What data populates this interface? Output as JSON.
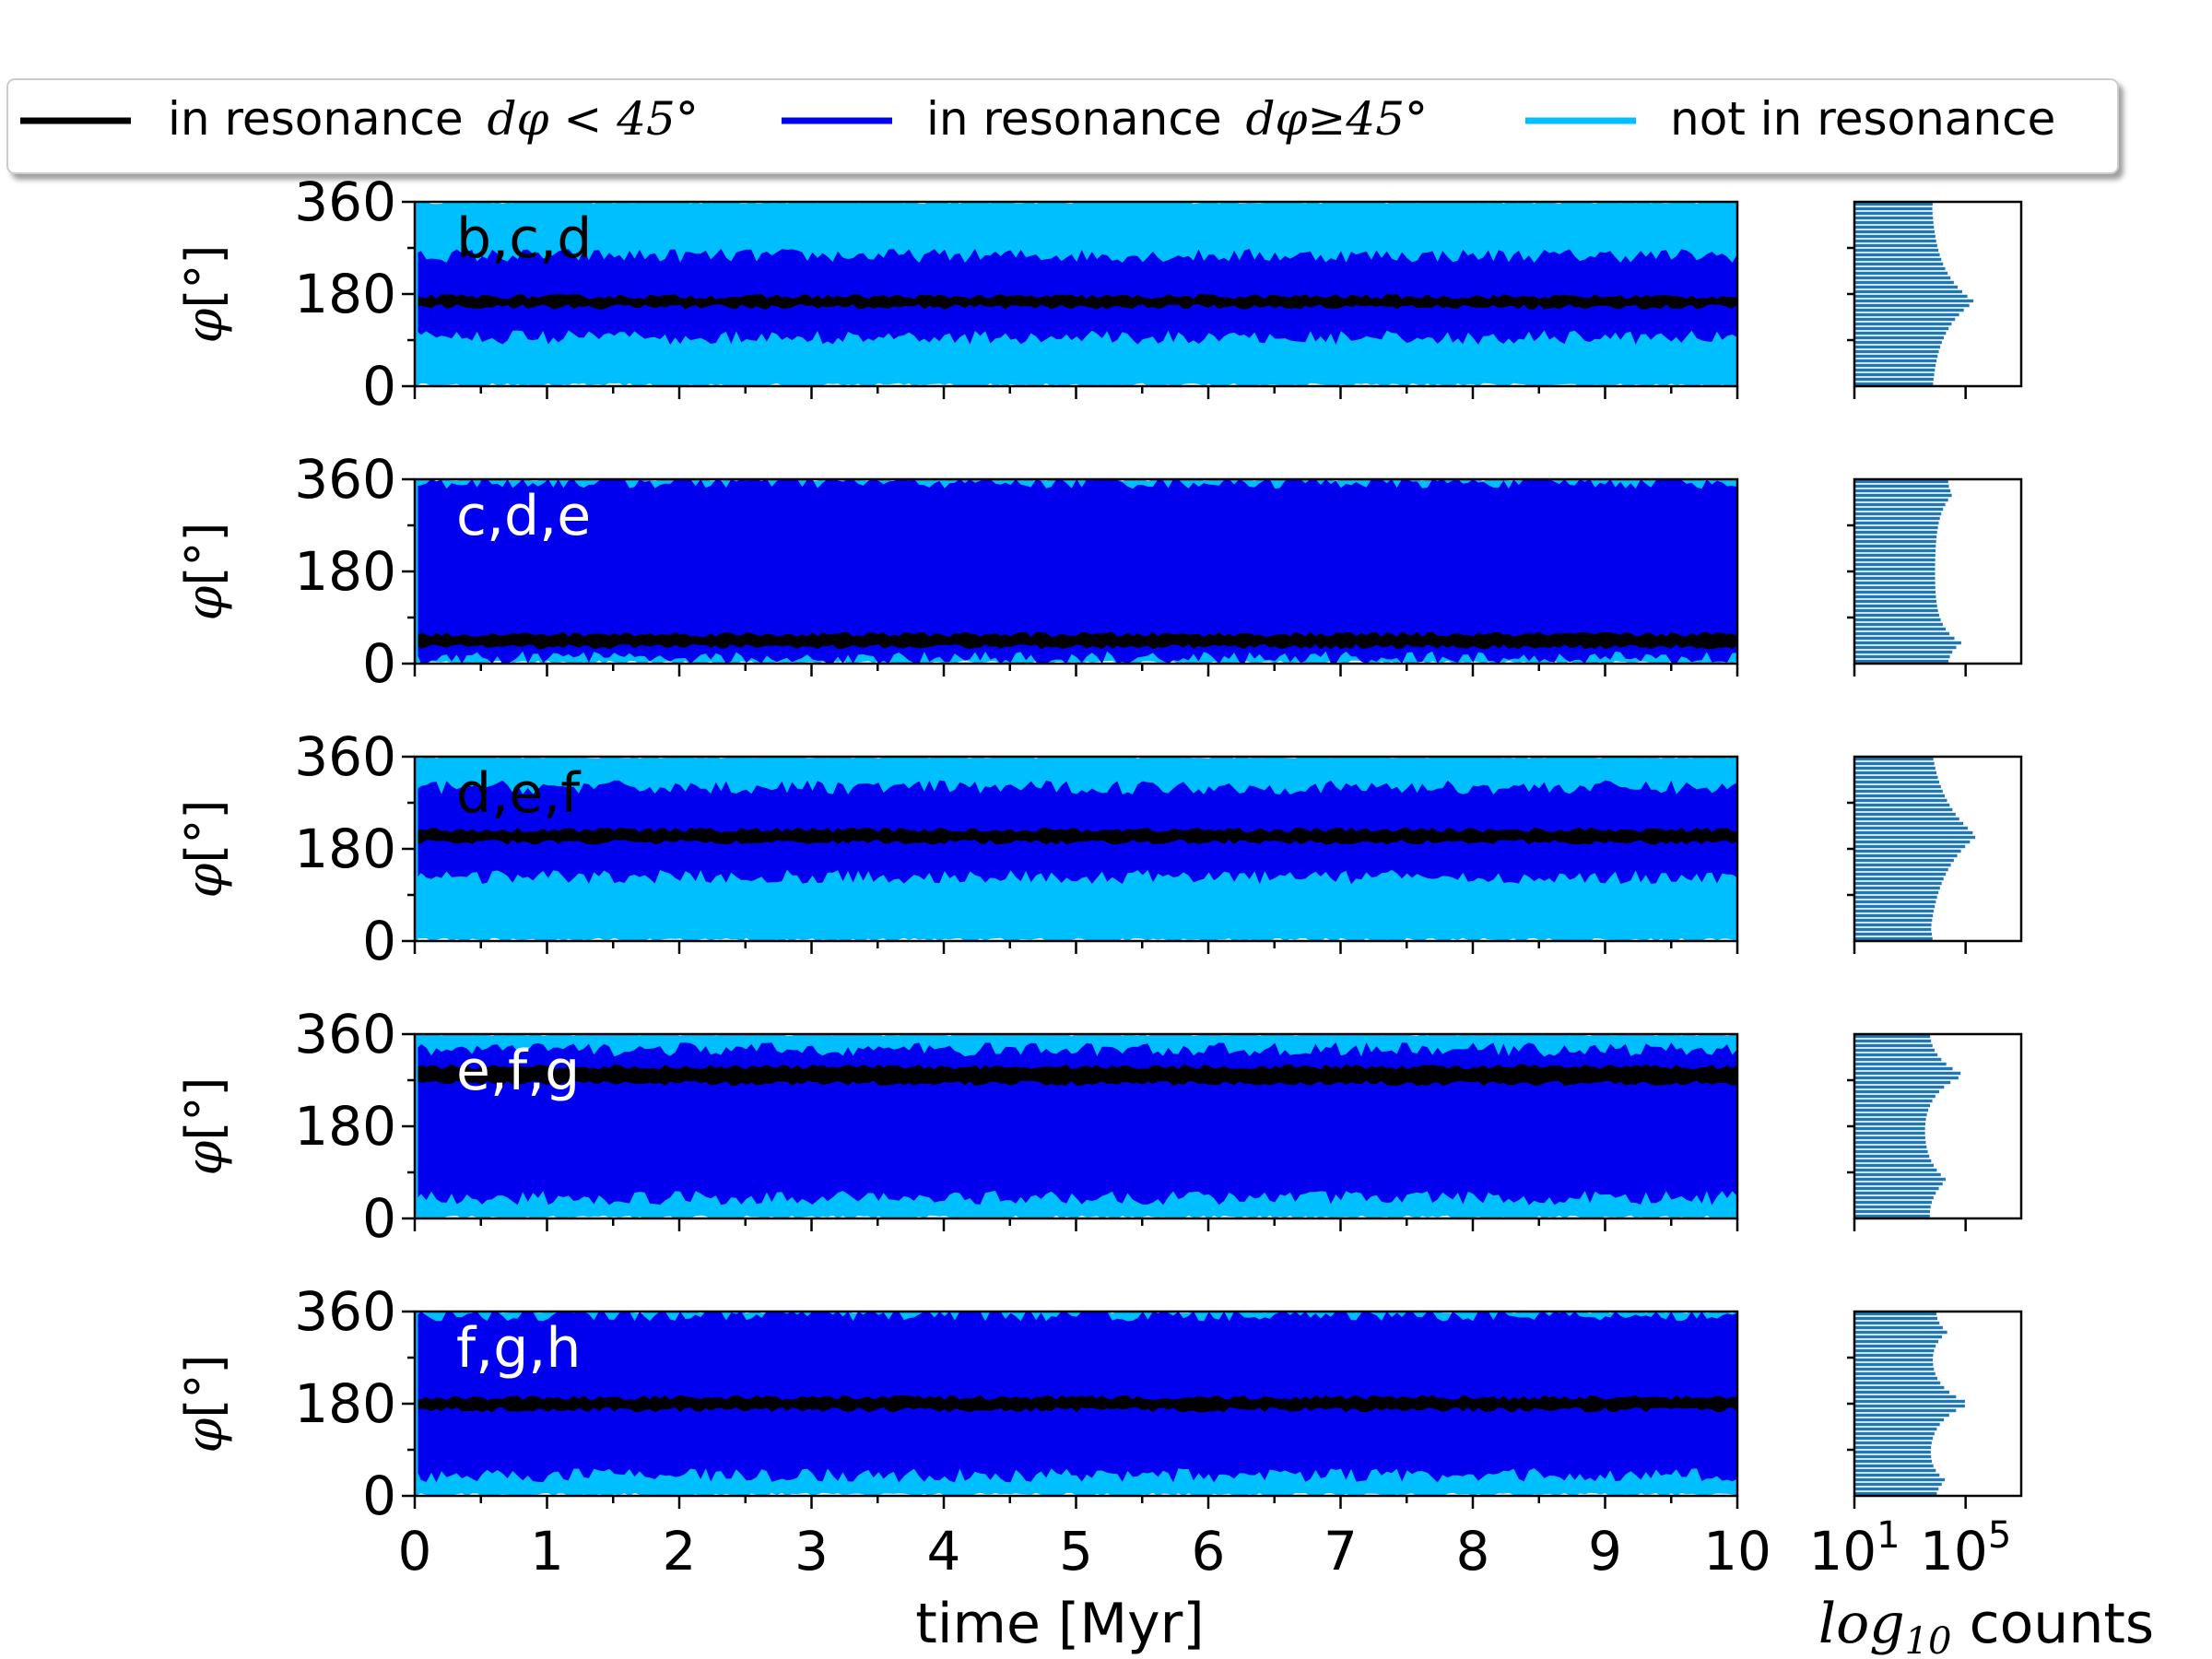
{
  "chart_data": {
    "type": "line",
    "legend": {
      "placement": "top",
      "entries": [
        {
          "label": "in resonance",
          "math": "dφ < 45°",
          "color": "#000000"
        },
        {
          "label": "in resonance",
          "math": "dφ≥45°",
          "color": "#0000ee"
        },
        {
          "label": "not in resonance",
          "math": "",
          "color": "#00bfff"
        }
      ]
    },
    "xlabel": "time [Myr]",
    "ylabel": "φ[°]",
    "xlim": [
      0,
      10
    ],
    "ylim": [
      0,
      360
    ],
    "xticks": [
      "0",
      "1",
      "2",
      "3",
      "4",
      "5",
      "6",
      "7",
      "8",
      "9",
      "10"
    ],
    "yticks": [
      "0",
      "180",
      "360"
    ],
    "hist_xlabel_math": "log",
    "hist_xlabel_sub": "10",
    "hist_xlabel_text": " counts",
    "hist_xticks": [
      {
        "base": "10",
        "exp": "1",
        "log": 1
      },
      {
        "base": "10",
        "exp": "5",
        "log": 5
      }
    ],
    "hist_xlim_log": [
      1,
      7
    ],
    "panels": [
      {
        "label": "b,c,d",
        "label_color": "#000000",
        "center": 165,
        "black_width": 10,
        "blue_range": [
          95,
          255
        ],
        "hist_peaks": [
          [
            165,
            1.0,
            60
          ]
        ],
        "hist_base": 0.45
      },
      {
        "label": "c,d,e",
        "label_color": "#ffffff",
        "center": 45,
        "black_width": 12,
        "blue_range": [
          10,
          355
        ],
        "hist_peaks": [
          [
            40,
            0.55,
            30
          ],
          [
            330,
            0.35,
            40
          ]
        ],
        "hist_base": 0.55
      },
      {
        "label": "d,e,f",
        "label_color": "#000000",
        "center": 205,
        "black_width": 12,
        "blue_range": [
          125,
          300
        ],
        "hist_peaks": [
          [
            205,
            1.15,
            80
          ]
        ],
        "hist_base": 0.35
      },
      {
        "label": "e,f,g",
        "label_color": "#ffffff",
        "center": 280,
        "black_width": 16,
        "blue_range": [
          40,
          330
        ],
        "hist_peaks": [
          [
            280,
            1.0,
            40
          ],
          [
            75,
            0.6,
            45
          ]
        ],
        "hist_base": 0.2
      },
      {
        "label": "f,g,h",
        "label_color": "#ffffff",
        "center": 180,
        "black_width": 12,
        "blue_range": [
          40,
          355
        ],
        "hist_peaks": [
          [
            180,
            1.0,
            35
          ],
          [
            30,
            0.4,
            25
          ],
          [
            320,
            0.45,
            30
          ]
        ],
        "hist_base": 0.35
      }
    ]
  }
}
